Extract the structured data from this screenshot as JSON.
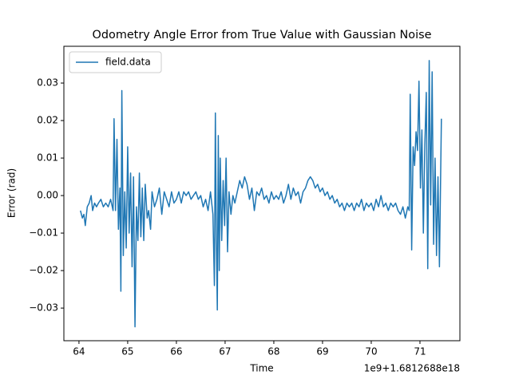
{
  "chart_data": {
    "type": "line",
    "title": "Odometry Angle Error from True Value with Gaussian Noise",
    "xlabel": "Time",
    "ylabel": "Error (rad)",
    "x_offset_text": "1e9+1.6812688e18",
    "legend": "upper left",
    "grid": false,
    "xlim": [
      63.69,
      71.82
    ],
    "xticks": [
      64,
      65,
      66,
      67,
      68,
      69,
      70,
      71
    ],
    "ylim": [
      -0.0387,
      0.0398
    ],
    "yticks": [
      {
        "value": -0.03,
        "label": "−0.03"
      },
      {
        "value": -0.02,
        "label": "−0.02"
      },
      {
        "value": -0.01,
        "label": "−0.01"
      },
      {
        "value": 0,
        "label": "0.00"
      },
      {
        "value": 0.01,
        "label": "0.01"
      },
      {
        "value": 0.02,
        "label": "0.02"
      },
      {
        "value": 0.03,
        "label": "0.03"
      }
    ],
    "series": [
      {
        "name": "field.data",
        "color": "#1f77b4",
        "x": [
          64.03,
          64.07,
          64.1,
          64.13,
          64.17,
          64.21,
          64.25,
          64.28,
          64.32,
          64.36,
          64.4,
          64.45,
          64.5,
          64.55,
          64.6,
          64.65,
          64.7,
          64.72,
          64.75,
          64.78,
          64.81,
          64.84,
          64.86,
          64.88,
          64.91,
          64.94,
          64.97,
          65.0,
          65.03,
          65.06,
          65.09,
          65.12,
          65.15,
          65.18,
          65.21,
          65.24,
          65.27,
          65.3,
          65.33,
          65.36,
          65.4,
          65.43,
          65.47,
          65.5,
          65.55,
          65.6,
          65.65,
          65.7,
          65.75,
          65.8,
          65.85,
          65.9,
          65.95,
          66.0,
          66.05,
          66.1,
          66.15,
          66.2,
          66.25,
          66.3,
          66.35,
          66.4,
          66.45,
          66.5,
          66.55,
          66.6,
          66.65,
          66.7,
          66.75,
          66.78,
          66.8,
          66.82,
          66.84,
          66.86,
          66.88,
          66.9,
          66.93,
          66.96,
          66.99,
          67.02,
          67.05,
          67.08,
          67.12,
          67.16,
          67.2,
          67.25,
          67.3,
          67.35,
          67.4,
          67.45,
          67.5,
          67.55,
          67.6,
          67.65,
          67.7,
          67.75,
          67.8,
          67.85,
          67.9,
          67.95,
          68.0,
          68.05,
          68.1,
          68.15,
          68.2,
          68.25,
          68.3,
          68.35,
          68.4,
          68.45,
          68.5,
          68.55,
          68.6,
          68.65,
          68.7,
          68.75,
          68.8,
          68.85,
          68.9,
          68.95,
          69.0,
          69.05,
          69.1,
          69.15,
          69.2,
          69.25,
          69.3,
          69.35,
          69.4,
          69.45,
          69.5,
          69.55,
          69.6,
          69.65,
          69.7,
          69.75,
          69.8,
          69.85,
          69.9,
          69.95,
          70.0,
          70.05,
          70.1,
          70.15,
          70.2,
          70.25,
          70.3,
          70.35,
          70.4,
          70.45,
          70.5,
          70.55,
          70.6,
          70.65,
          70.7,
          70.75,
          70.78,
          70.8,
          70.83,
          70.86,
          70.89,
          70.92,
          70.95,
          70.98,
          71.01,
          71.04,
          71.07,
          71.1,
          71.13,
          71.16,
          71.19,
          71.22,
          71.25,
          71.28,
          71.31,
          71.34,
          71.37,
          71.4,
          71.44
        ],
        "values": [
          -0.004,
          -0.006,
          -0.005,
          -0.008,
          -0.003,
          -0.002,
          0.0,
          -0.004,
          -0.002,
          -0.003,
          -0.002,
          -0.001,
          -0.003,
          -0.002,
          -0.003,
          -0.001,
          -0.004,
          0.0205,
          -0.004,
          0.015,
          -0.009,
          0.002,
          -0.0255,
          0.028,
          -0.016,
          0.001,
          -0.014,
          0.013,
          -0.01,
          0.006,
          -0.019,
          0.005,
          -0.035,
          -0.003,
          -0.012,
          0.006,
          -0.011,
          0.002,
          -0.012,
          0.003,
          -0.006,
          -0.004,
          -0.009,
          0.001,
          -0.003,
          -0.001,
          0.002,
          -0.005,
          0.001,
          -0.001,
          -0.003,
          0.001,
          -0.002,
          -0.001,
          0.001,
          -0.002,
          0.001,
          0.0,
          0.001,
          -0.001,
          0.0,
          0.001,
          -0.001,
          0.0,
          -0.003,
          -0.001,
          -0.004,
          0.001,
          -0.005,
          -0.024,
          0.022,
          -0.012,
          -0.0305,
          0.016,
          -0.02,
          0.01,
          -0.012,
          0.004,
          -0.008,
          0.01,
          -0.015,
          0.001,
          -0.005,
          0.0,
          -0.002,
          0.001,
          0.004,
          0.002,
          0.005,
          0.003,
          -0.001,
          0.002,
          -0.004,
          0.001,
          0.0,
          0.002,
          -0.001,
          0.0,
          -0.002,
          0.001,
          -0.001,
          0.0,
          -0.001,
          0.001,
          -0.002,
          0.0,
          0.003,
          -0.001,
          0.002,
          0.0,
          0.001,
          -0.002,
          0.001,
          0.002,
          0.004,
          0.005,
          0.004,
          0.002,
          0.003,
          0.001,
          0.002,
          0.0,
          0.001,
          -0.001,
          0.0,
          -0.002,
          -0.001,
          -0.003,
          -0.002,
          -0.004,
          -0.002,
          -0.003,
          -0.002,
          -0.004,
          -0.002,
          -0.003,
          -0.001,
          -0.004,
          -0.002,
          -0.003,
          -0.002,
          -0.004,
          -0.001,
          -0.003,
          0.0,
          -0.003,
          -0.002,
          -0.004,
          -0.002,
          -0.003,
          -0.002,
          -0.004,
          -0.005,
          -0.003,
          -0.006,
          -0.003,
          -0.004,
          0.027,
          -0.0145,
          0.013,
          0.008,
          0.017,
          0.012,
          0.0305,
          0.002,
          0.0175,
          -0.01,
          0.0135,
          0.0275,
          -0.0195,
          0.036,
          -0.0025,
          0.033,
          -0.013,
          0.01,
          -0.016,
          0.005,
          -0.019,
          0.0205
        ]
      }
    ]
  }
}
